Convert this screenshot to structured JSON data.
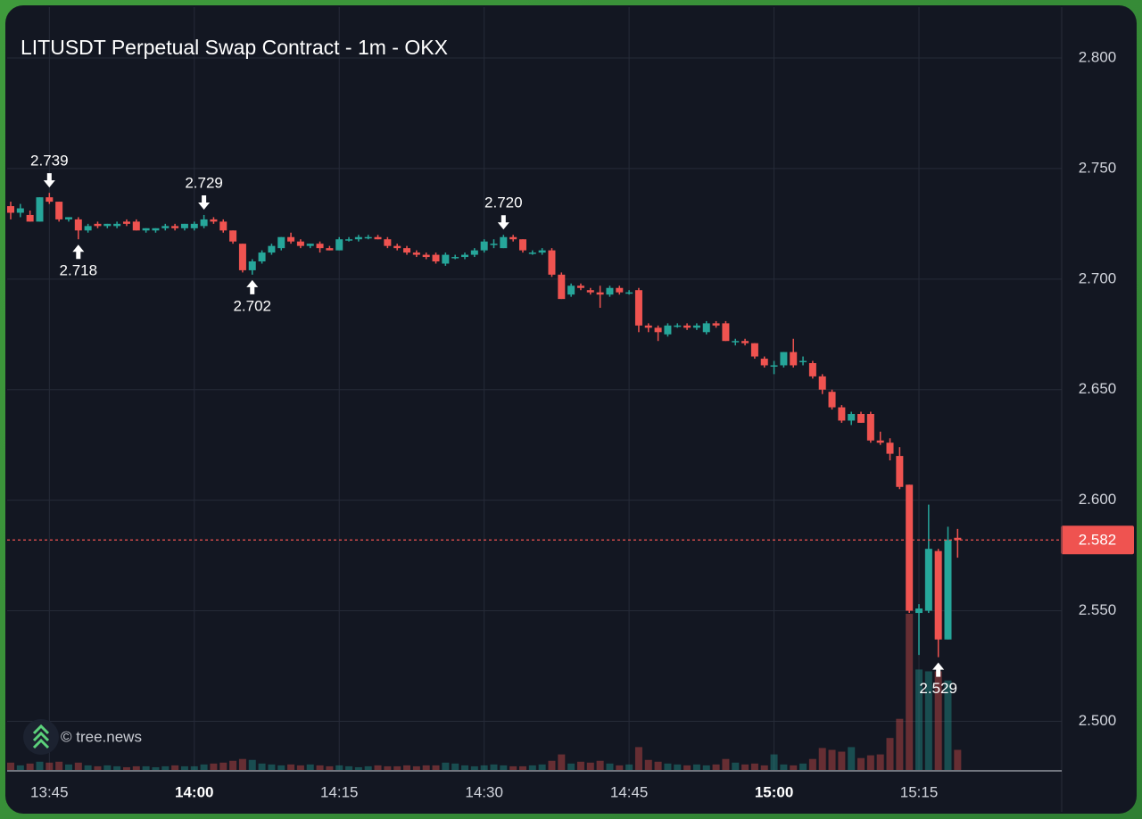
{
  "chart_data": {
    "type": "candlestick",
    "title": "LITUSDT Perpetual Swap Contract - 1m - OKX",
    "watermark": "© tree.news",
    "up_color": "#26a69a",
    "down_color": "#ef5350",
    "categories": [
      "13:41",
      "13:42",
      "13:43",
      "13:44",
      "13:45",
      "13:46",
      "13:47",
      "13:48",
      "13:49",
      "13:50",
      "13:51",
      "13:52",
      "13:53",
      "13:54",
      "13:55",
      "13:56",
      "13:57",
      "13:58",
      "13:59",
      "14:00",
      "14:01",
      "14:02",
      "14:03",
      "14:04",
      "14:05",
      "14:06",
      "14:07",
      "14:08",
      "14:09",
      "14:10",
      "14:11",
      "14:12",
      "14:13",
      "14:14",
      "14:15",
      "14:16",
      "14:17",
      "14:18",
      "14:19",
      "14:20",
      "14:21",
      "14:22",
      "14:23",
      "14:24",
      "14:25",
      "14:26",
      "14:27",
      "14:28",
      "14:29",
      "14:30",
      "14:31",
      "14:32",
      "14:33",
      "14:34",
      "14:35",
      "14:36",
      "14:37",
      "14:38",
      "14:39",
      "14:40",
      "14:41",
      "14:42",
      "14:43",
      "14:44",
      "14:45",
      "14:46",
      "14:47",
      "14:48",
      "14:49",
      "14:50",
      "14:51",
      "14:52",
      "14:53",
      "14:54",
      "14:55",
      "14:56",
      "14:57",
      "14:58",
      "14:59",
      "15:00",
      "15:01",
      "15:02",
      "15:03",
      "15:04",
      "15:05",
      "15:06",
      "15:07",
      "15:08",
      "15:09",
      "15:10",
      "15:11",
      "15:12",
      "15:13",
      "15:14",
      "15:15",
      "15:16",
      "15:17",
      "15:18",
      "15:19"
    ],
    "open": [
      2.733,
      2.73,
      2.729,
      2.726,
      2.737,
      2.735,
      2.727,
      2.727,
      2.722,
      2.725,
      2.724,
      2.724,
      2.726,
      2.726,
      2.722,
      2.722,
      2.723,
      2.724,
      2.723,
      2.723,
      2.724,
      2.727,
      2.726,
      2.722,
      2.716,
      2.704,
      2.708,
      2.712,
      2.714,
      2.719,
      2.717,
      2.715,
      2.716,
      2.714,
      2.713,
      2.718,
      2.718,
      2.719,
      2.719,
      2.718,
      2.715,
      2.714,
      2.712,
      2.711,
      2.711,
      2.707,
      2.71,
      2.71,
      2.711,
      2.713,
      2.716,
      2.714,
      2.719,
      2.718,
      2.712,
      2.712,
      2.713,
      2.702,
      2.693,
      2.697,
      2.695,
      2.694,
      2.693,
      2.696,
      2.694,
      2.695,
      2.679,
      2.678,
      2.675,
      2.679,
      2.679,
      2.678,
      2.676,
      2.68,
      2.68,
      2.672,
      2.672,
      2.671,
      2.664,
      2.661,
      2.661,
      2.667,
      2.663,
      2.662,
      2.656,
      2.649,
      2.642,
      2.636,
      2.639,
      2.639,
      2.627,
      2.626,
      2.62,
      2.607,
      2.549,
      2.55,
      2.577,
      2.537,
      2.583
    ],
    "high": [
      2.735,
      2.734,
      2.731,
      2.737,
      2.739,
      2.735,
      2.728,
      2.728,
      2.725,
      2.726,
      2.725,
      2.726,
      2.727,
      2.727,
      2.723,
      2.723,
      2.725,
      2.725,
      2.725,
      2.726,
      2.729,
      2.728,
      2.727,
      2.722,
      2.716,
      2.709,
      2.713,
      2.716,
      2.719,
      2.721,
      2.718,
      2.716,
      2.717,
      2.715,
      2.719,
      2.719,
      2.72,
      2.72,
      2.72,
      2.719,
      2.716,
      2.715,
      2.713,
      2.712,
      2.712,
      2.712,
      2.711,
      2.712,
      2.714,
      2.718,
      2.718,
      2.72,
      2.72,
      2.718,
      2.713,
      2.714,
      2.714,
      2.703,
      2.698,
      2.698,
      2.696,
      2.697,
      2.697,
      2.697,
      2.695,
      2.696,
      2.68,
      2.679,
      2.68,
      2.68,
      2.68,
      2.68,
      2.681,
      2.681,
      2.681,
      2.673,
      2.673,
      2.671,
      2.665,
      2.663,
      2.667,
      2.673,
      2.665,
      2.663,
      2.657,
      2.65,
      2.643,
      2.64,
      2.64,
      2.64,
      2.631,
      2.628,
      2.624,
      2.607,
      2.553,
      2.598,
      2.578,
      2.588,
      2.587
    ],
    "low": [
      2.727,
      2.728,
      2.726,
      2.726,
      2.734,
      2.726,
      2.726,
      2.718,
      2.721,
      2.723,
      2.723,
      2.723,
      2.724,
      2.722,
      2.721,
      2.721,
      2.722,
      2.722,
      2.722,
      2.722,
      2.723,
      2.725,
      2.721,
      2.716,
      2.703,
      2.702,
      2.707,
      2.711,
      2.713,
      2.716,
      2.714,
      2.714,
      2.712,
      2.713,
      2.713,
      2.717,
      2.717,
      2.718,
      2.718,
      2.714,
      2.713,
      2.711,
      2.71,
      2.709,
      2.707,
      2.706,
      2.709,
      2.709,
      2.71,
      2.712,
      2.714,
      2.714,
      2.717,
      2.712,
      2.711,
      2.711,
      2.701,
      2.691,
      2.692,
      2.695,
      2.693,
      2.687,
      2.692,
      2.693,
      2.693,
      2.676,
      2.676,
      2.672,
      2.674,
      2.678,
      2.677,
      2.677,
      2.675,
      2.678,
      2.672,
      2.67,
      2.67,
      2.664,
      2.66,
      2.657,
      2.66,
      2.66,
      2.661,
      2.655,
      2.648,
      2.641,
      2.635,
      2.634,
      2.635,
      2.626,
      2.625,
      2.618,
      2.605,
      2.549,
      2.53,
      2.549,
      2.529,
      2.537,
      2.574
    ],
    "close": [
      2.73,
      2.732,
      2.726,
      2.737,
      2.735,
      2.727,
      2.728,
      2.722,
      2.724,
      2.724,
      2.725,
      2.725,
      2.725,
      2.722,
      2.723,
      2.723,
      2.724,
      2.723,
      2.725,
      2.725,
      2.727,
      2.726,
      2.722,
      2.717,
      2.704,
      2.708,
      2.712,
      2.715,
      2.719,
      2.717,
      2.715,
      2.716,
      2.714,
      2.713,
      2.718,
      2.718,
      2.719,
      2.719,
      2.718,
      2.715,
      2.714,
      2.712,
      2.711,
      2.71,
      2.708,
      2.711,
      2.71,
      2.711,
      2.713,
      2.717,
      2.716,
      2.719,
      2.718,
      2.713,
      2.712,
      2.713,
      2.702,
      2.691,
      2.697,
      2.696,
      2.694,
      2.693,
      2.696,
      2.694,
      2.694,
      2.679,
      2.678,
      2.676,
      2.679,
      2.679,
      2.678,
      2.679,
      2.68,
      2.679,
      2.672,
      2.672,
      2.671,
      2.665,
      2.661,
      2.661,
      2.667,
      2.661,
      2.663,
      2.656,
      2.65,
      2.642,
      2.636,
      2.639,
      2.635,
      2.627,
      2.626,
      2.621,
      2.606,
      2.55,
      2.551,
      2.578,
      2.537,
      2.582,
      2.582
    ],
    "volume": [
      8,
      5,
      7,
      9,
      8,
      9,
      6,
      8,
      5,
      4,
      5,
      4,
      3,
      4,
      4,
      3,
      4,
      5,
      4,
      4,
      6,
      7,
      8,
      10,
      12,
      11,
      7,
      6,
      5,
      6,
      5,
      6,
      5,
      4,
      5,
      4,
      3,
      4,
      5,
      4,
      4,
      5,
      4,
      5,
      5,
      8,
      7,
      5,
      4,
      5,
      6,
      5,
      4,
      4,
      5,
      6,
      10,
      17,
      7,
      9,
      8,
      10,
      7,
      5,
      6,
      25,
      11,
      9,
      7,
      6,
      5,
      6,
      5,
      6,
      12,
      8,
      6,
      7,
      5,
      17,
      6,
      5,
      7,
      12,
      24,
      22,
      20,
      25,
      13,
      16,
      17,
      35,
      56,
      171,
      110,
      108,
      108,
      98,
      22
    ],
    "ylim": [
      2.478,
      2.823
    ],
    "yticks": [
      {
        "value": 2.5,
        "label": "2.500"
      },
      {
        "value": 2.55,
        "label": "2.550"
      },
      {
        "value": 2.6,
        "label": "2.600"
      },
      {
        "value": 2.65,
        "label": "2.650"
      },
      {
        "value": 2.7,
        "label": "2.700"
      },
      {
        "value": 2.75,
        "label": "2.750"
      },
      {
        "value": 2.8,
        "label": "2.800"
      }
    ],
    "xticks": [
      "13:45",
      "14:00",
      "14:15",
      "14:30",
      "14:45",
      "15:00",
      "15:15"
    ],
    "grid": true,
    "last_price": {
      "value": 2.582,
      "label": "2.582"
    },
    "markers": [
      {
        "x": "13:45",
        "value": 2.739,
        "kind": "high"
      },
      {
        "x": "13:48",
        "value": 2.718,
        "kind": "low"
      },
      {
        "x": "14:01",
        "value": 2.729,
        "kind": "high"
      },
      {
        "x": "14:06",
        "value": 2.702,
        "kind": "low"
      },
      {
        "x": "14:32",
        "value": 2.72,
        "label": "2.720",
        "kind": "high"
      },
      {
        "x": "15:17",
        "value": 2.529,
        "kind": "low"
      }
    ]
  }
}
